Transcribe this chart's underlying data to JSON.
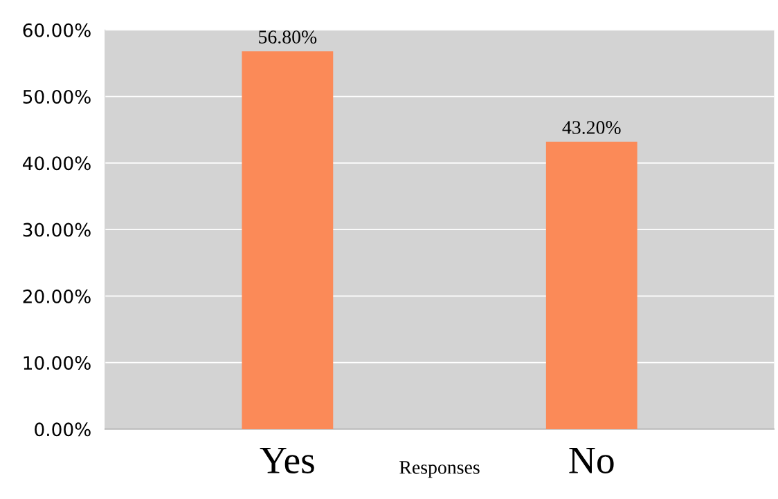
{
  "chart_data": {
    "type": "bar",
    "categories": [
      "Yes",
      "No"
    ],
    "values": [
      56.8,
      43.2
    ],
    "value_labels": [
      "56.80%",
      "43.20%"
    ],
    "color": "#fb8a58",
    "xlabel": "Responses",
    "ylim": [
      0,
      60
    ],
    "yticks": [
      {
        "value": 0,
        "label": "0.00%"
      },
      {
        "value": 10,
        "label": "10.00%"
      },
      {
        "value": 20,
        "label": "20.00%"
      },
      {
        "value": 30,
        "label": "30.00%"
      },
      {
        "value": 40,
        "label": "40.00%"
      },
      {
        "value": 50,
        "label": "50.00%"
      },
      {
        "value": 60,
        "label": "60.00%"
      }
    ],
    "grid": "y",
    "legend": false
  }
}
